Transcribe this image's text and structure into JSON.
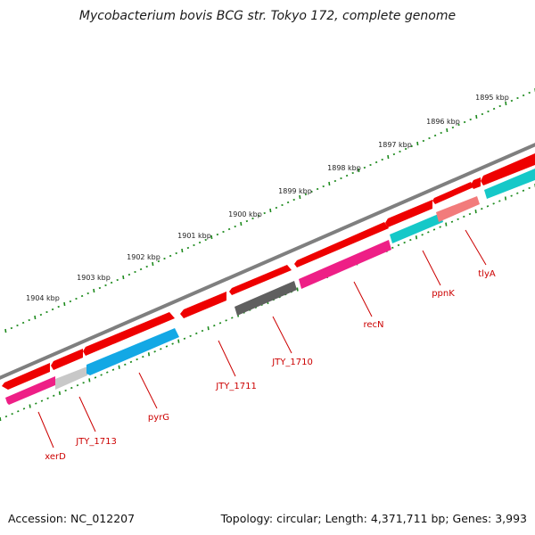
{
  "title": "Mycobacterium bovis BCG str. Tokyo 172, complete genome",
  "footer": {
    "accession": "Accession: NC_012207",
    "summary": "Topology: circular; Length: 4,371,711 bp; Genes: 3,993"
  },
  "colors": {
    "backbone": "#7f7f7f",
    "gene_red": "#ee0000",
    "gene_pink": "#ee1f86",
    "gene_sky": "#13a8e5",
    "gene_cyan": "#15c8c8",
    "gene_gray": "#5f5f5f",
    "gene_light_red": "#f27b7b",
    "gene_light_gray": "#c8c8c8",
    "tick_green": "#1d8a1d",
    "label_red": "#cc0000"
  },
  "position_ticks": [
    "1895 kbp",
    "1896 kbp",
    "1897 kbp",
    "1898 kbp",
    "1899 kbp",
    "1900 kbp",
    "1901 kbp",
    "1902 kbp",
    "1903 kbp",
    "1904 kbp"
  ],
  "gene_labels": [
    "tlyA",
    "ppnK",
    "recN",
    "JTY_1710",
    "JTY_1711",
    "pyrG",
    "JTY_1713",
    "xerD"
  ]
}
